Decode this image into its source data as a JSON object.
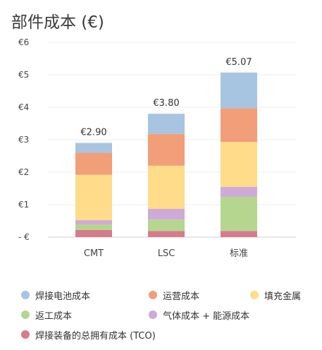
{
  "chart_data": {
    "type": "bar",
    "stacked": true,
    "title": "部件成本 (€)",
    "categories": [
      "CMT",
      "LSC",
      "标准"
    ],
    "ylim": [
      0,
      6
    ],
    "yticks": [
      {
        "value": 0,
        "label": "- €"
      },
      {
        "value": 1,
        "label": "€1"
      },
      {
        "value": 2,
        "label": "€2"
      },
      {
        "value": 3,
        "label": "€3"
      },
      {
        "value": 4,
        "label": "€4"
      },
      {
        "value": 5,
        "label": "€5"
      },
      {
        "value": 6,
        "label": "€6"
      }
    ],
    "grid": true,
    "legend_position": "bottom",
    "series": [
      {
        "name": "焊接装备的总拥有成本 (TCO)",
        "color": "#d57b8c",
        "values": [
          0.22,
          0.19,
          0.19
        ]
      },
      {
        "name": "返工成本",
        "color": "#b5d68e",
        "values": [
          0.17,
          0.35,
          1.06
        ]
      },
      {
        "name": "气体成本 + 能源成本",
        "color": "#cfaad8",
        "values": [
          0.13,
          0.33,
          0.3
        ]
      },
      {
        "name": "填充金属",
        "color": "#fedc8a",
        "values": [
          1.4,
          1.33,
          1.38
        ]
      },
      {
        "name": "运营成本",
        "color": "#f29e79",
        "values": [
          0.68,
          0.98,
          1.04
        ]
      },
      {
        "name": "焊接电池成本",
        "color": "#a7c4e0",
        "values": [
          0.3,
          0.62,
          1.1
        ]
      }
    ],
    "totals": [
      "€2.90",
      "€3.80",
      "€5.07"
    ]
  },
  "legend_rows": [
    [
      "焊接电池成本",
      "运营成本",
      "填充金属"
    ],
    [
      "返工成本",
      "气体成本 + 能源成本"
    ],
    [
      "焊接装备的总拥有成本 (TCO)"
    ]
  ]
}
